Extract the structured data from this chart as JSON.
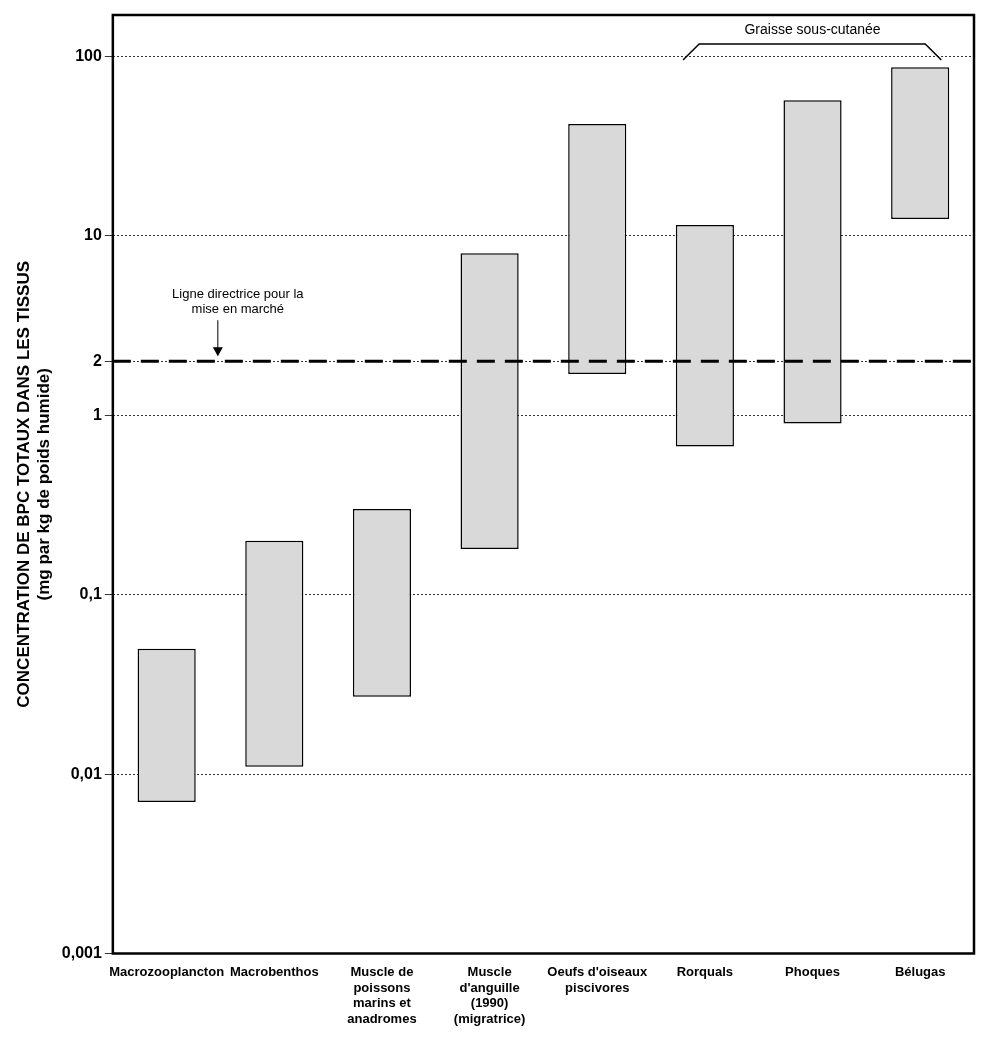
{
  "chart_data": {
    "type": "bar",
    "ylabel": "CONCENTRATION DE BPC TOTAUX DANS LES TISSUS\n(mg par kg de poids humide)",
    "categories": [
      "Macrozooplancton",
      "Macrobenthos",
      "Muscle de poissons marins et anadromes",
      "Muscle d'anguille (1990) (migratrice)",
      "Oeufs d'oiseaux piscivores",
      "Rorquals",
      "Phoques",
      "Bélugas"
    ],
    "base": [
      0.007,
      0.011,
      0.027,
      0.18,
      1.7,
      0.67,
      0.9,
      12.4
    ],
    "values": [
      0.043,
      0.189,
      0.273,
      7.82,
      40.3,
      10.83,
      56.1,
      74.6
    ],
    "color": "#d9d9d9",
    "log": "y",
    "ylim": [
      0.001,
      170
    ],
    "yticks": [
      {
        "value": 0.001,
        "label": "0,001"
      },
      {
        "value": 0.01,
        "label": "0,01"
      },
      {
        "value": 0.1,
        "label": "0,1"
      },
      1,
      2,
      10,
      100
    ],
    "grid": "y",
    "ref_lines": [
      {
        "axis": "y",
        "value": 2,
        "label": "Ligne directrice pour la mise en marché",
        "line_style": "dashed"
      }
    ],
    "annotations": [
      "Graisse sous-cutanée"
    ]
  }
}
